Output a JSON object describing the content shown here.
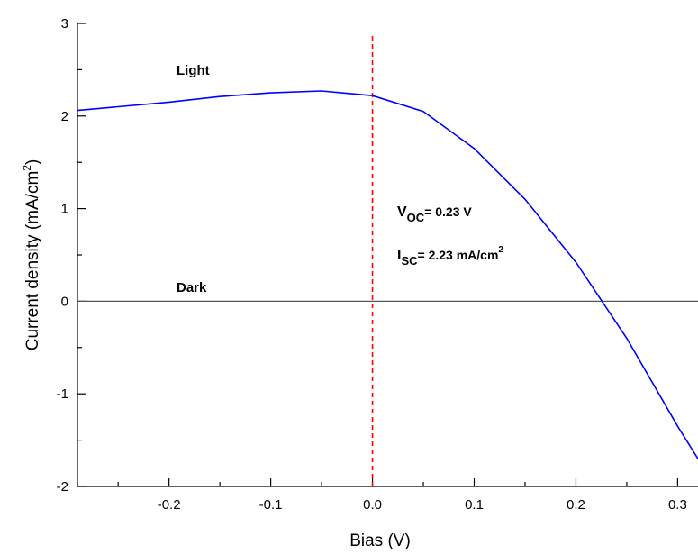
{
  "chart_data": {
    "type": "line",
    "xlabel": "Bias (V)",
    "ylabel_main": "Current density (mA/cm",
    "ylabel_sup": "2",
    "ylabel_close": ")",
    "xlim": [
      -0.29,
      0.32
    ],
    "ylim": [
      -2,
      3
    ],
    "x_ticks": [
      -0.2,
      -0.1,
      0.0,
      0.1,
      0.2,
      0.3
    ],
    "x_tick_labels": [
      "-0.2",
      "-0.1",
      "0.0",
      "0.1",
      "0.2",
      "0.3"
    ],
    "x_minor_ticks": [
      -0.25,
      -0.15,
      -0.05,
      0.05,
      0.15,
      0.25
    ],
    "y_ticks": [
      -2,
      -1,
      0,
      1,
      2,
      3
    ],
    "y_tick_labels": [
      "-2",
      "-1",
      "0",
      "1",
      "2",
      "3"
    ],
    "y_minor_ticks": [
      -1.5,
      -0.5,
      0.5,
      1.5,
      2.5
    ],
    "grid": false,
    "series": [
      {
        "name": "Light",
        "color": "#0000ff",
        "x": [
          -0.29,
          -0.25,
          -0.2,
          -0.15,
          -0.1,
          -0.05,
          0.0,
          0.05,
          0.1,
          0.15,
          0.2,
          0.25,
          0.3,
          0.32
        ],
        "y": [
          2.06,
          2.1,
          2.15,
          2.21,
          2.25,
          2.27,
          2.22,
          2.05,
          1.65,
          1.1,
          0.42,
          -0.4,
          -1.35,
          -1.7
        ]
      },
      {
        "name": "Dark",
        "color": "#555555",
        "x": [
          -0.29,
          0.32
        ],
        "y": [
          0,
          0
        ]
      }
    ],
    "reference_line": {
      "x": 0.0,
      "color": "#ff0000",
      "style": "dashed"
    },
    "annotations": {
      "light_label": "Light",
      "dark_label": "Dark",
      "voc_V": "V",
      "voc_sub": "OC",
      "voc_value": "= 0.23 V",
      "isc_I": "I",
      "isc_sub": "SC",
      "isc_value": "= 2.23 mA/cm",
      "isc_sup": "2"
    }
  }
}
